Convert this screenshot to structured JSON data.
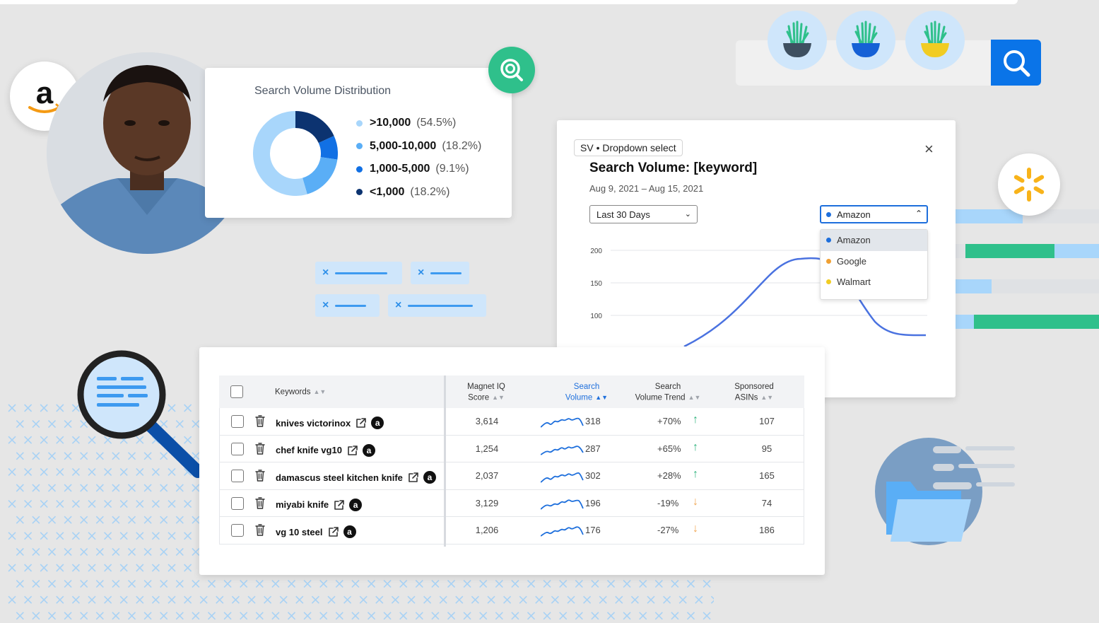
{
  "distribution": {
    "title": "Search Volume Distribution",
    "segments": [
      {
        "range": ">10,000",
        "pct": "(54.5%)",
        "value": 54.5,
        "color": "#a8d6fb"
      },
      {
        "range": "5,000-10,000",
        "pct": "(18.2%)",
        "value": 18.2,
        "color": "#5aaef6"
      },
      {
        "range": "1,000-5,000",
        "pct": "(9.1%)",
        "value": 9.1,
        "color": "#1170e4"
      },
      {
        "range": "<1,000",
        "pct": "(18.2%)",
        "value": 18.2,
        "color": "#0c3370"
      }
    ]
  },
  "chart": {
    "tag": "SV • Dropdown select",
    "title": "Search Volume: [keyword]",
    "date_range": "Aug 9, 2021 – Aug 15, 2021",
    "close": "×",
    "range_select": "Last 30 Days",
    "source_select": "Amazon",
    "source_options": [
      {
        "label": "Amazon",
        "color": "#1e6fdc",
        "active": true
      },
      {
        "label": "Google",
        "color": "#f0a033",
        "active": false
      },
      {
        "label": "Walmart",
        "color": "#f1cc23",
        "active": false
      }
    ],
    "y_ticks": [
      "200",
      "150",
      "100"
    ],
    "line_color": "#4a72e0"
  },
  "table": {
    "headers": {
      "keywords": "Keywords",
      "score": [
        "Magnet IQ",
        "Score"
      ],
      "volume": [
        "Search",
        "Volume"
      ],
      "trend": [
        "Search",
        "Volume Trend"
      ],
      "asins": [
        "Sponsored",
        "ASINs"
      ]
    },
    "rows": [
      {
        "keyword": "knives victorinox",
        "score": "3,614",
        "volume": "318",
        "trend": "+70%",
        "dir": "up",
        "asins": "107"
      },
      {
        "keyword": "chef knife vg10",
        "score": "1,254",
        "volume": "287",
        "trend": "+65%",
        "dir": "up",
        "asins": "95"
      },
      {
        "keyword": "damascus steel kitchen knife",
        "score": "2,037",
        "volume": "302",
        "trend": "+28%",
        "dir": "up",
        "asins": "165"
      },
      {
        "keyword": "miyabi knife",
        "score": "3,129",
        "volume": "196",
        "trend": "-19%",
        "dir": "down",
        "asins": "74"
      },
      {
        "keyword": "vg 10 steel",
        "score": "1,206",
        "volume": "176",
        "trend": "-27%",
        "dir": "down",
        "asins": "186"
      }
    ],
    "amazon_badge": "a"
  },
  "icons": {
    "amazon_logo": "amazon-logo",
    "walmart_logo": "walmart-spark-logo",
    "up_arrow": "↑",
    "down_arrow": "↓"
  },
  "colors": {
    "accent_blue": "#0a74e8",
    "accent_green": "#2fc08b",
    "trend_up": "#2fb37d",
    "trend_down": "#f0a552"
  }
}
